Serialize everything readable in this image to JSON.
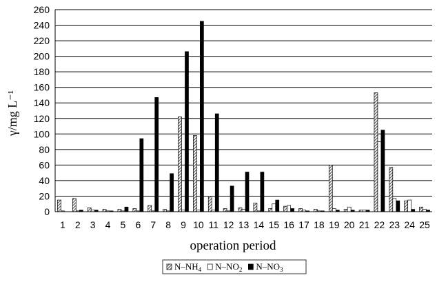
{
  "chart_data": {
    "type": "bar",
    "title": "",
    "xlabel": "operation period",
    "ylabel": "γ/mg L⁻¹",
    "ylim": [
      0,
      260
    ],
    "ytick_step": 20,
    "grid": "horizontal",
    "legend_position": "bottom",
    "categories": [
      "1",
      "2",
      "3",
      "4",
      "5",
      "6",
      "7",
      "8",
      "9",
      "10",
      "11",
      "12",
      "13",
      "14",
      "15",
      "16",
      "17",
      "18",
      "19",
      "20",
      "21",
      "22",
      "23",
      "24",
      "25"
    ],
    "series": [
      {
        "name": "N–NH₄",
        "legend": {
          "main": "N–NH",
          "sub": "4"
        },
        "pattern": "hatch",
        "values": [
          15,
          17,
          5,
          3,
          3,
          4,
          8,
          3,
          122,
          98,
          20,
          4,
          5,
          11,
          4,
          7,
          4,
          3,
          60,
          3,
          2,
          153,
          57,
          14,
          6
        ]
      },
      {
        "name": "N–NO₂",
        "legend": {
          "main": "N–NO",
          "sub": "2"
        },
        "pattern": "white",
        "values": [
          1,
          1,
          2,
          1,
          1,
          1,
          1,
          1,
          2,
          2,
          2,
          1,
          3,
          1,
          10,
          8,
          2,
          1,
          4,
          6,
          2,
          90,
          17,
          15,
          3
        ]
      },
      {
        "name": "N–NO₃",
        "legend": {
          "main": "N–NO",
          "sub": "3"
        },
        "pattern": "black",
        "values": [
          0,
          2,
          2,
          1,
          6,
          94,
          147,
          49,
          206,
          245,
          126,
          33,
          51,
          51,
          15,
          4,
          1,
          1,
          2,
          2,
          2,
          105,
          14,
          3,
          2
        ]
      }
    ]
  }
}
